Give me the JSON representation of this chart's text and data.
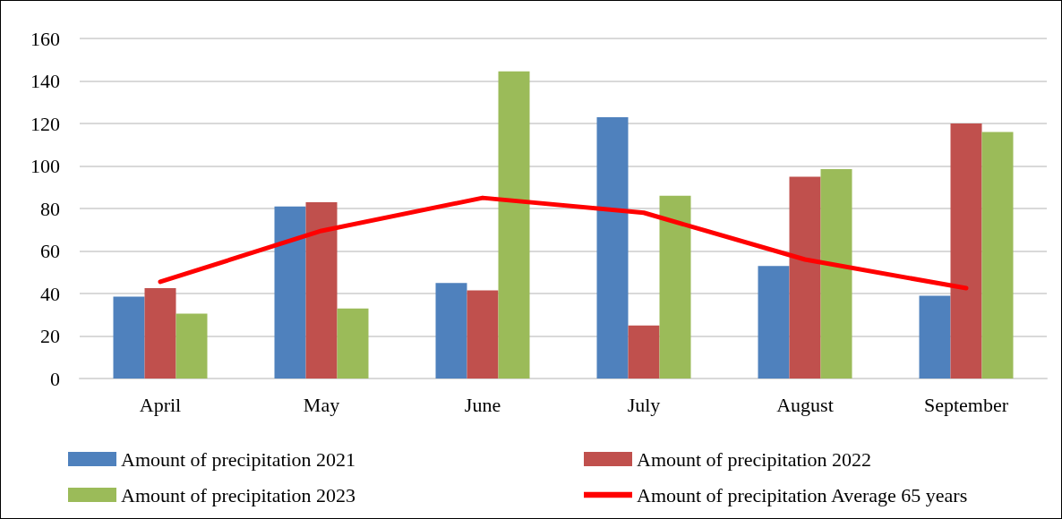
{
  "chart_data": {
    "type": "bar",
    "categories": [
      "April",
      "May",
      "June",
      "July",
      "August",
      "September"
    ],
    "series": [
      {
        "name": "Amount of precipitation 2021",
        "color": "#4f81bd",
        "values": [
          38.5,
          81,
          45,
          123,
          53,
          39
        ]
      },
      {
        "name": "Amount of precipitation 2022",
        "color": "#c0504d",
        "values": [
          42.5,
          83,
          41.5,
          25,
          95,
          120
        ]
      },
      {
        "name": "Amount of precipitation 2023",
        "color": "#9bbb59",
        "values": [
          30.5,
          33,
          144.5,
          86,
          98.5,
          116
        ]
      },
      {
        "name": "Amount of precipitation Average 65 years",
        "type": "line",
        "color": "#ff0000",
        "values": [
          45.5,
          69.5,
          85,
          78,
          56,
          42.5
        ]
      }
    ],
    "ylim": [
      0,
      160
    ],
    "yticks": [
      0,
      20,
      40,
      60,
      80,
      100,
      120,
      140,
      160
    ],
    "grid": "y",
    "legend": "bottom",
    "marker": "none",
    "line_style": "solid"
  }
}
